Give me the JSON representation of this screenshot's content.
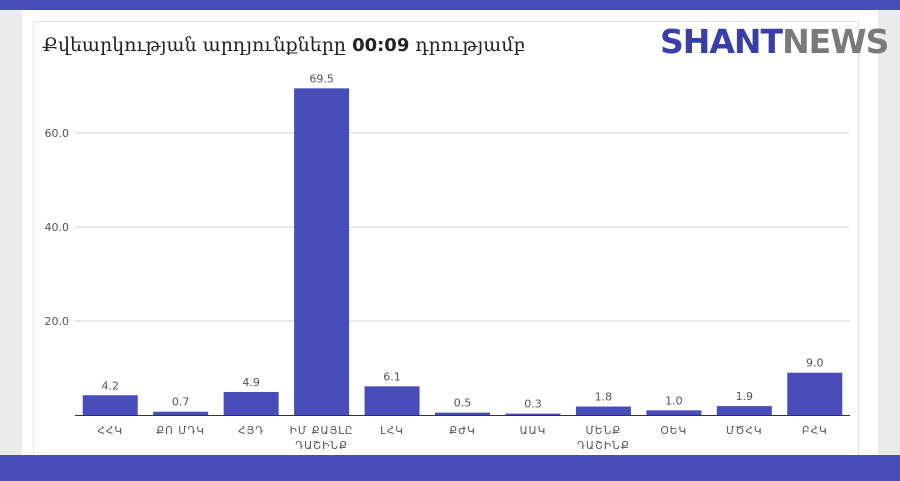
{
  "title": {
    "prefix": "Քվեարկության արդյունքները",
    "time": "00:09",
    "suffix": "դրությամբ"
  },
  "logo": {
    "part1": "SHANT",
    "part2": "NEWS"
  },
  "colors": {
    "bar": "#474db9",
    "band": "#474db9",
    "logo_main": "#3a3fa8",
    "logo_accent": "#7a7a7a"
  },
  "chart_data": {
    "type": "bar",
    "categories": [
      "ՀՀԿ",
      "ՔՈ ՄԴԿ",
      "ՀՅԴ",
      "ԻՄ ՔԱՅԼԸ\nԴԱՇԻՆՔ",
      "ԼՀԿ",
      "ՔԺԿ",
      "ԱԱԿ",
      "ՄԵՆՔ\nԴԱՇԻՆՔ",
      "ՕԵԿ",
      "ՄԾՀԿ",
      "ԲՀԿ"
    ],
    "values": [
      4.2,
      0.7,
      4.9,
      69.5,
      6.1,
      0.5,
      0.3,
      1.8,
      1.0,
      1.9,
      9.0
    ],
    "data_labels": [
      "4.2",
      "0.7",
      "4.9",
      "69.5",
      "6.1",
      "0.5",
      "0.3",
      "1.8",
      "1.0",
      "1.9",
      "9.0"
    ],
    "y_ticks": [
      "20.0",
      "40.0",
      "60.0"
    ],
    "y_tick_values": [
      20,
      40,
      60
    ],
    "ylim": [
      0,
      72
    ],
    "grid": true,
    "legend": "none"
  }
}
